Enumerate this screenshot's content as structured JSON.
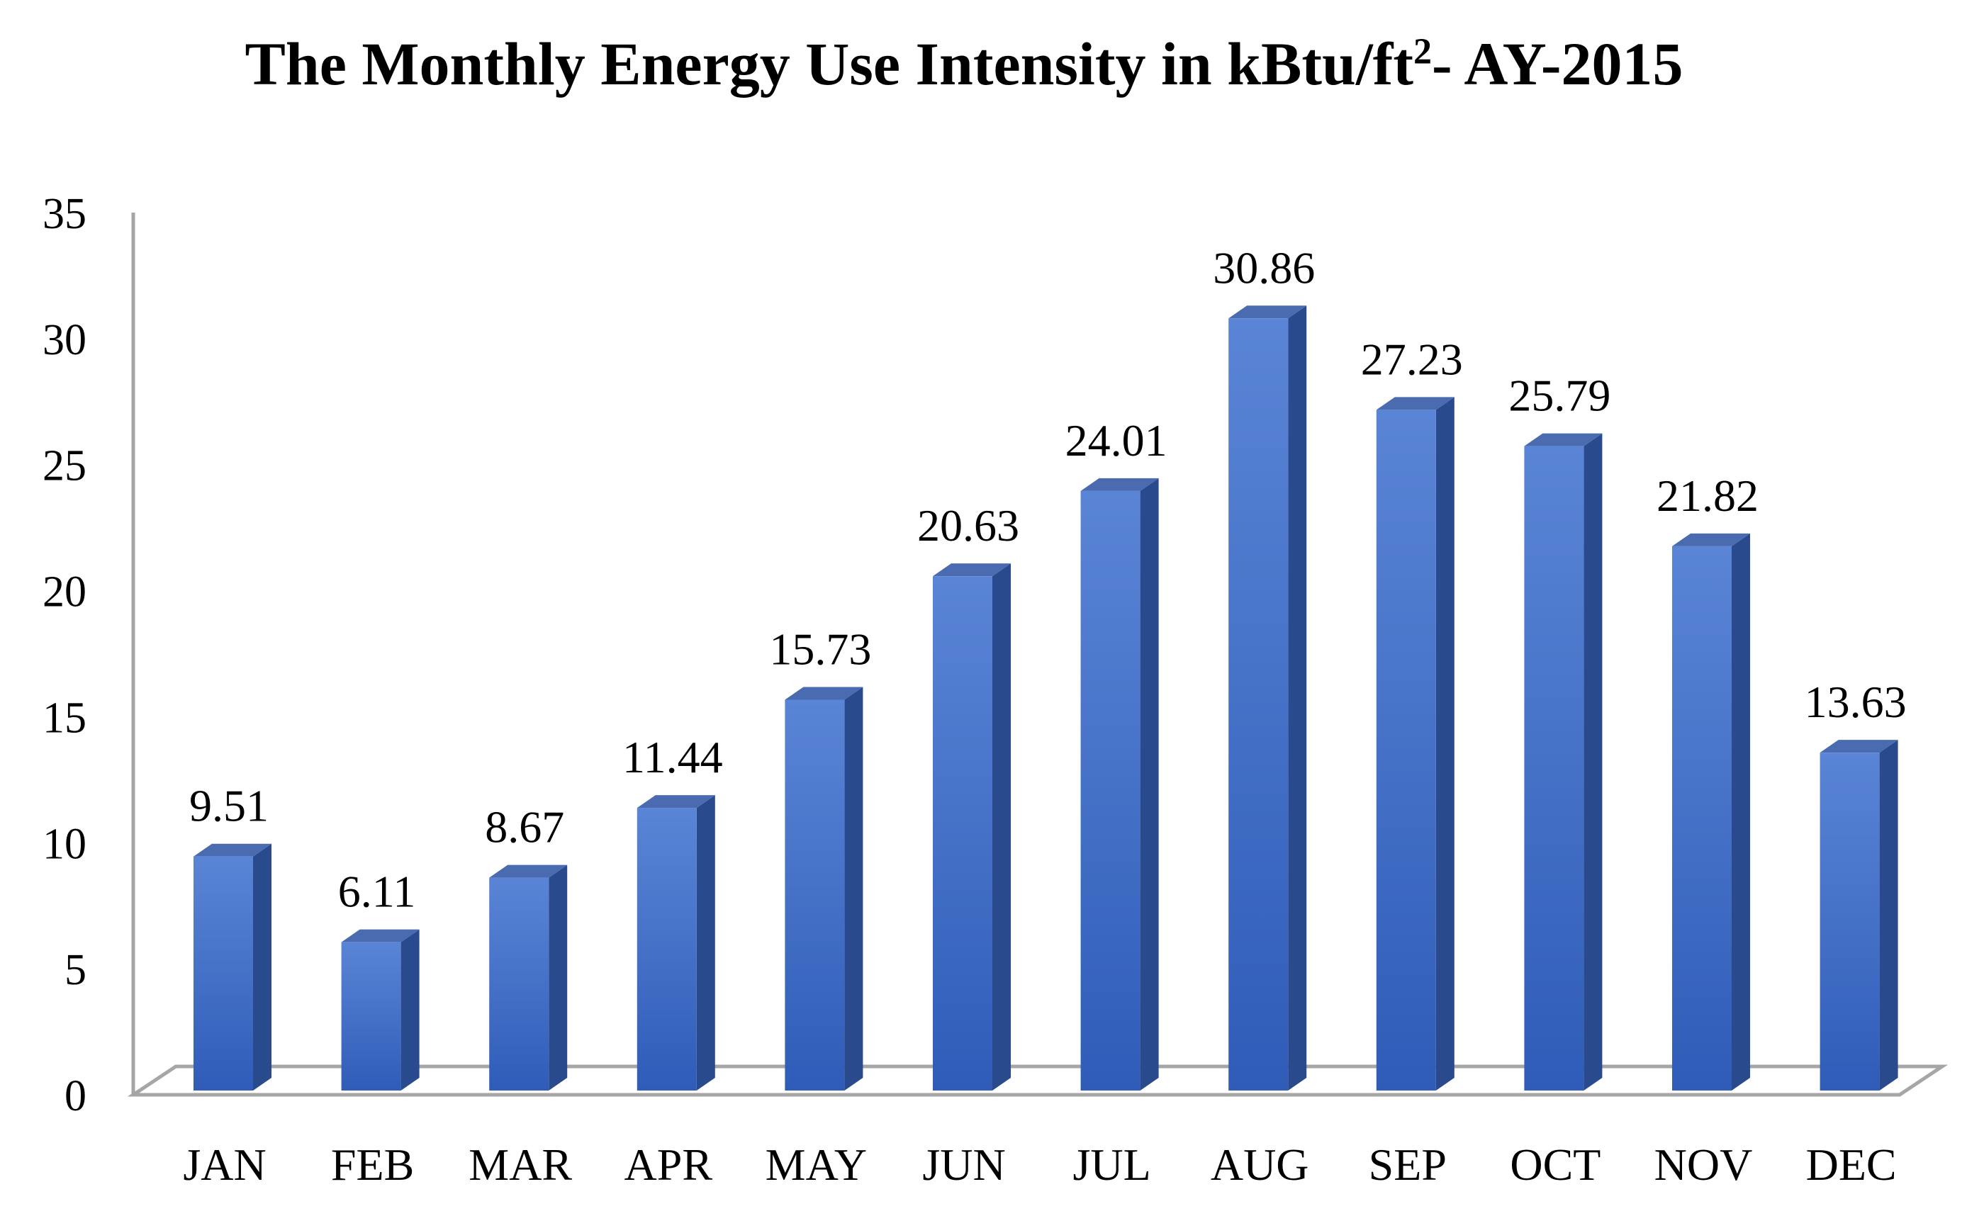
{
  "chart_data": {
    "type": "bar",
    "title_main": "The Monthly Energy Use Intensity in kBtu/ft",
    "title_sup": "2",
    "title_end": "- AY-2015",
    "categories": [
      "JAN",
      "FEB",
      "MAR",
      "APR",
      "MAY",
      "JUN",
      "JUL",
      "AUG",
      "SEP",
      "OCT",
      "NOV",
      "DEC"
    ],
    "values": [
      9.51,
      6.11,
      8.67,
      11.44,
      15.73,
      20.63,
      24.01,
      30.86,
      27.23,
      25.79,
      21.82,
      13.63
    ],
    "data_labels": [
      "9.51",
      "6.11",
      "8.67",
      "11.44",
      "15.73",
      "20.63",
      "24.01",
      "30.86",
      "27.23",
      "25.79",
      "21.82",
      "13.63"
    ],
    "ylim": [
      0,
      35
    ],
    "yticks": [
      "0",
      "5",
      "10",
      "15",
      "20",
      "25",
      "30",
      "35"
    ],
    "xlabel": "",
    "ylabel": "",
    "grid": false,
    "legend": "none",
    "colors": {
      "bar_front": "#3f6fcc",
      "bar_light": "#5a85d6",
      "bar_side": "#2a4a8e",
      "bar_top": "#4a6bb0",
      "axis": "#a6a6a6"
    }
  }
}
